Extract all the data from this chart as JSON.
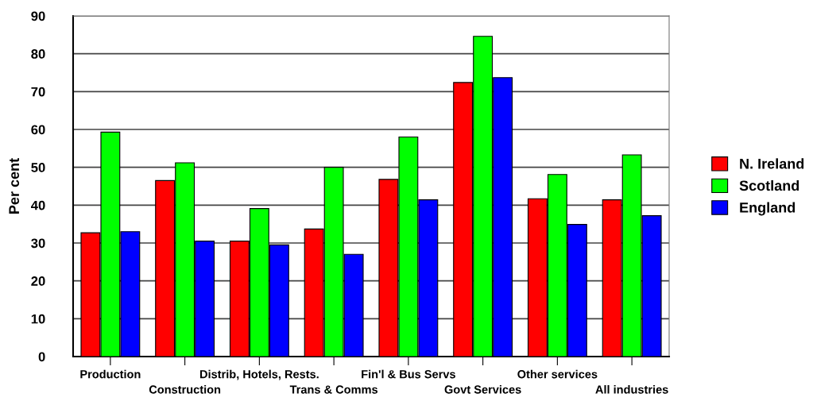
{
  "chart_data": {
    "type": "bar",
    "ylabel": "Per cent",
    "categories": [
      "Production",
      "Construction",
      "Distrib, Hotels, Rests.",
      "Trans & Comms",
      "Fin'l & Bus Servs",
      "Govt Services",
      "Other services",
      "All industries"
    ],
    "series": [
      {
        "name": "N. Ireland",
        "color": "#ff0000",
        "values": [
          32.7,
          46.5,
          30.5,
          33.7,
          46.8,
          72.4,
          41.7,
          41.4
        ]
      },
      {
        "name": "Scotland",
        "color": "#00ff00",
        "values": [
          59.3,
          51.2,
          39.1,
          50.0,
          58.0,
          84.6,
          48.1,
          53.3
        ]
      },
      {
        "name": "England",
        "color": "#0000ff",
        "values": [
          33.0,
          30.5,
          29.5,
          27.0,
          41.4,
          73.7,
          34.9,
          37.2
        ]
      }
    ],
    "ylim": [
      0,
      90
    ],
    "yticks": [
      0,
      10,
      20,
      30,
      40,
      50,
      60,
      70,
      80,
      90
    ],
    "grid": "y",
    "legend": "right"
  }
}
